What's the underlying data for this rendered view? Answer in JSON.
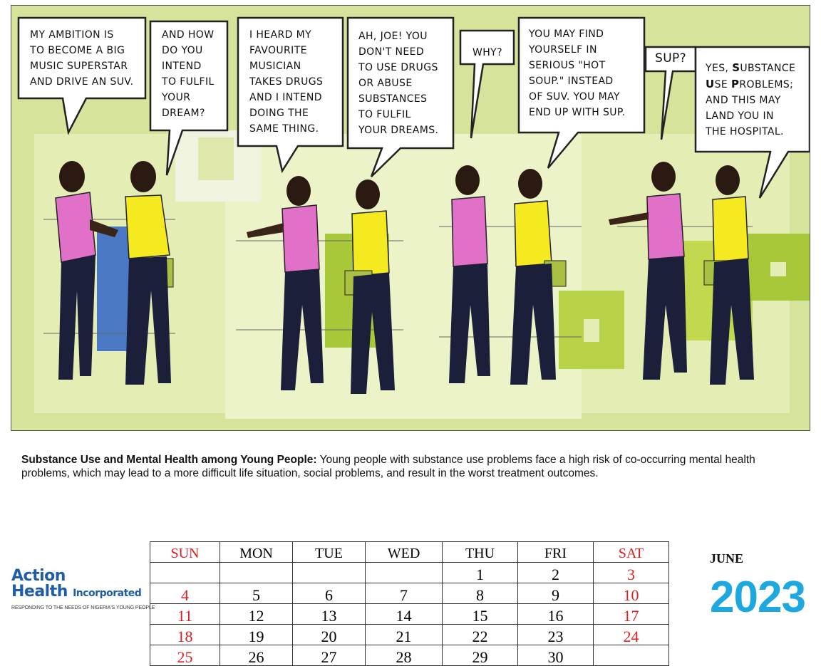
{
  "comic": {
    "bubbles": [
      {
        "id": "b1",
        "text": "MY AMBITION IS\nTO BECOME A BIG\nMUSIC SUPERSTAR\nAND DRIVE AN SUV."
      },
      {
        "id": "b2",
        "text": "AND HOW\nDO YOU\nINTEND\nTO FULFIL\nYOUR\nDREAM?"
      },
      {
        "id": "b3",
        "text": "I HEARD MY\nFAVOURITE\nMUSICIAN\nTAKES DRUGS\nAND I INTEND\nDOING THE\nSAME THING."
      },
      {
        "id": "b4",
        "text": "AH, JOE! YOU\nDON'T NEED\nTO USE DRUGS\nOR ABUSE\nSUBSTANCES\nTO FULFIL\nYOUR DREAMS."
      },
      {
        "id": "b5",
        "text": "WHY?"
      },
      {
        "id": "b6",
        "text": "YOU MAY FIND\nYOURSELF IN\nSERIOUS \"HOT\nSOUP.\" INSTEAD\nOF SUV. YOU MAY\nEND UP WITH SUP."
      },
      {
        "id": "b7",
        "text": "SUP?"
      },
      {
        "id": "b8a",
        "text": "YES, "
      },
      {
        "id": "b8s",
        "text": "S"
      },
      {
        "id": "b8b",
        "text": "UBSTANCE"
      },
      {
        "id": "b8u",
        "text": "U"
      },
      {
        "id": "b8c",
        "text": "SE "
      },
      {
        "id": "b8p",
        "text": "P"
      },
      {
        "id": "b8d",
        "text": "ROBLEMS;"
      },
      {
        "id": "b8e",
        "text": "AND THIS MAY\nLAND YOU IN\nTHE HOSPITAL."
      }
    ]
  },
  "caption": {
    "title": "Substance Use and Mental Health among Young People:",
    "body": " Young people with substance use problems face a high risk of co-occurring mental health problems, which may lead to a more difficult life situation, social problems, and result in the worst treatment outcomes."
  },
  "logo": {
    "line1": "Action",
    "line2": "Health",
    "line2b": "Incorporated",
    "tagline": "RESPONDING TO THE NEEDS OF NIGERIA'S YOUNG PEOPLE"
  },
  "calendar": {
    "days": [
      "SUN",
      "MON",
      "TUE",
      "WED",
      "THU",
      "FRI",
      "SAT"
    ],
    "weeks": [
      [
        "",
        "",
        "",
        "",
        "1",
        "2",
        "3"
      ],
      [
        "4",
        "5",
        "6",
        "7",
        "8",
        "9",
        "10"
      ],
      [
        "11",
        "12",
        "13",
        "14",
        "15",
        "16",
        "17"
      ],
      [
        "18",
        "19",
        "20",
        "21",
        "22",
        "23",
        "24"
      ],
      [
        "25",
        "26",
        "27",
        "28",
        "29",
        "30",
        ""
      ]
    ],
    "month": "JUNE",
    "year": "2023",
    "weekend_color": "#e02020"
  },
  "colors": {
    "panel_bg": "#d6e39a",
    "accent_blue": "#1ea8e0",
    "logo_blue": "#1f5da8"
  }
}
